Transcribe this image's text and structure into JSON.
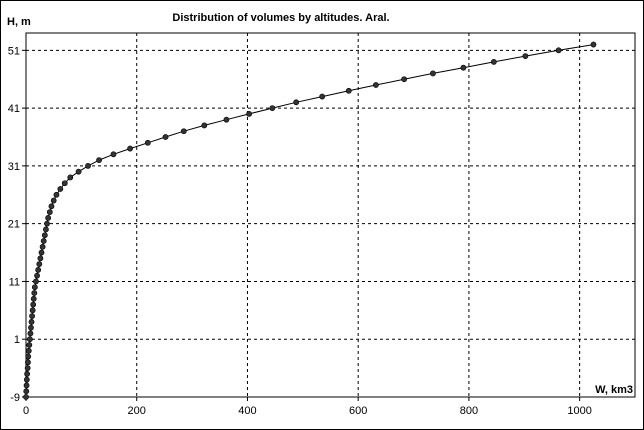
{
  "chart_data": {
    "type": "line",
    "title": "Distribution of volumes by altitudes. Aral.",
    "xlabel": "W, km3",
    "ylabel": "H, m",
    "xlim": [
      0,
      1100
    ],
    "ylim": [
      -9,
      54
    ],
    "x_ticks": [
      0,
      200,
      400,
      600,
      800,
      1000
    ],
    "y_ticks": [
      -9,
      1,
      11,
      21,
      31,
      41,
      51
    ],
    "grid": true,
    "markers": true,
    "line_color": "#000000",
    "marker_color": "#333333",
    "series": [
      {
        "x": [
          0,
          0.5,
          1,
          1.5,
          2,
          3,
          3.5,
          4,
          5,
          6,
          7,
          8,
          9,
          10,
          11,
          12,
          13,
          14,
          15,
          16,
          18,
          20,
          22,
          24,
          26,
          28,
          30,
          32,
          34,
          36,
          38,
          40,
          43,
          46,
          50,
          55,
          62,
          70,
          80,
          95,
          112,
          132,
          158,
          188,
          220,
          252,
          285,
          322,
          362,
          403,
          445,
          488,
          535,
          583,
          632,
          683,
          735,
          790,
          845,
          902,
          962,
          1025
        ],
        "y": [
          -9,
          -8,
          -7,
          -6,
          -5,
          -4,
          -3,
          -2,
          -1,
          0,
          1,
          2,
          3,
          4,
          5,
          6,
          7,
          8,
          9,
          10,
          11,
          12,
          13,
          14,
          15,
          16,
          17,
          18,
          19,
          20,
          21,
          22,
          23,
          24,
          25,
          26,
          27,
          28,
          29,
          30,
          31,
          32,
          33,
          34,
          35,
          36,
          37,
          38,
          39,
          40,
          41,
          42,
          43,
          44,
          45,
          46,
          47,
          48,
          49,
          50,
          51,
          52
        ]
      }
    ]
  }
}
